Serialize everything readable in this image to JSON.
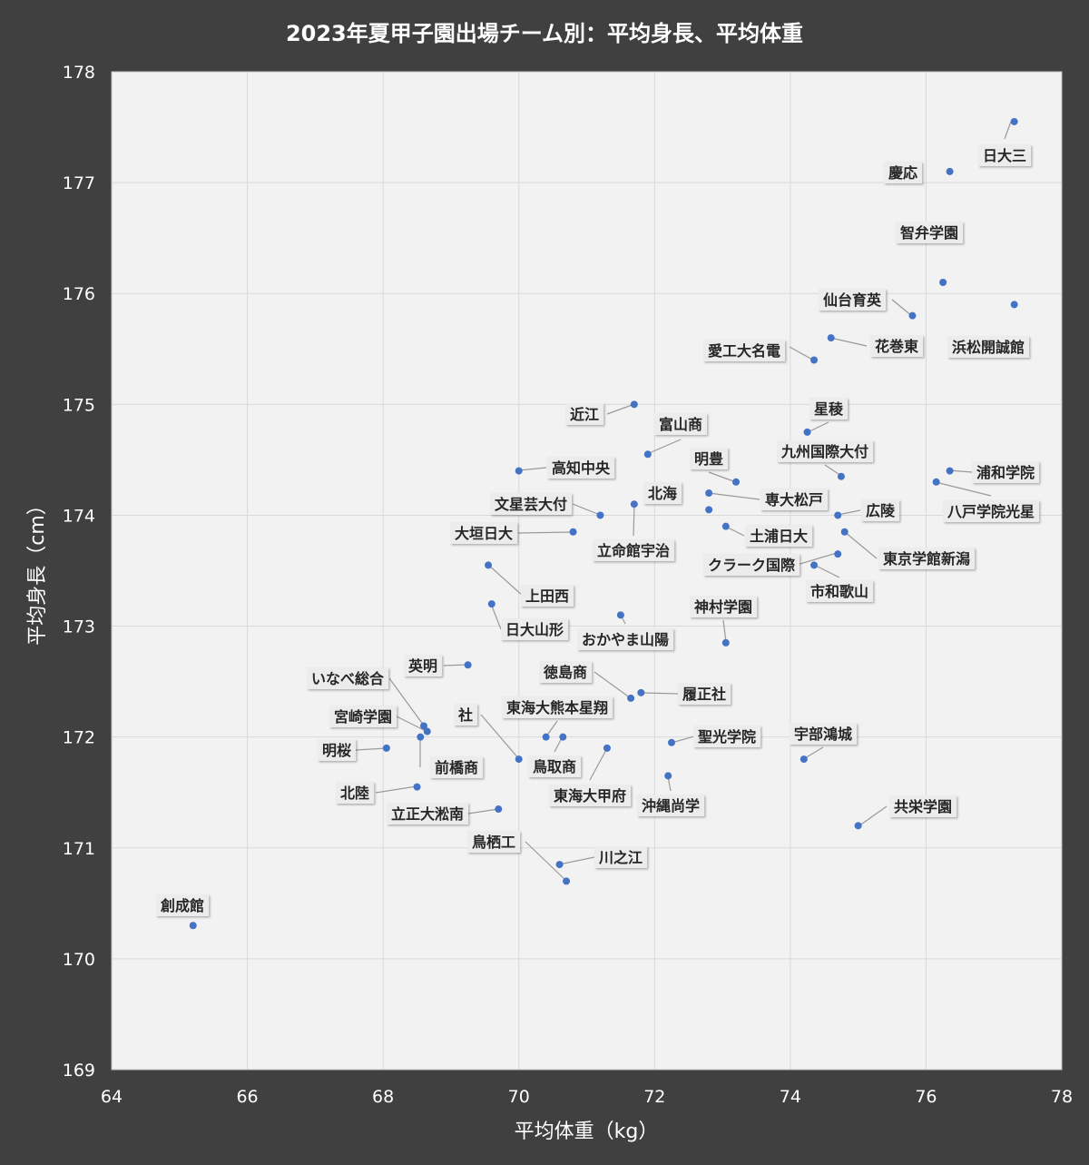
{
  "chart_data": {
    "type": "scatter",
    "title": "2023年夏甲子園出場チーム別：平均身長、平均体重",
    "xlabel": "平均体重（kg）",
    "ylabel": "平均身長（cm）",
    "xlim": [
      64,
      78
    ],
    "ylim": [
      169,
      178
    ],
    "xticks": [
      "64",
      "66",
      "68",
      "70",
      "72",
      "74",
      "76",
      "78"
    ],
    "yticks": [
      "169",
      "170",
      "171",
      "172",
      "173",
      "174",
      "175",
      "176",
      "177",
      "178"
    ],
    "grid": true,
    "legend": "none",
    "colors": {
      "point": "#4472c4",
      "plot_bg": "#f2f2f2",
      "frame_bg": "#404040"
    },
    "points": [
      {
        "name": "日大三",
        "x": 77.3,
        "y": 177.55
      },
      {
        "name": "慶応",
        "x": 76.35,
        "y": 177.1
      },
      {
        "name": "智弁学園",
        "x": 76.25,
        "y": 176.1
      },
      {
        "name": "浜松開誠館",
        "x": 77.3,
        "y": 175.9
      },
      {
        "name": "仙台育英",
        "x": 75.8,
        "y": 175.8
      },
      {
        "name": "花巻東",
        "x": 74.6,
        "y": 175.6
      },
      {
        "name": "愛工大名電",
        "x": 74.35,
        "y": 175.4
      },
      {
        "name": "近江",
        "x": 71.7,
        "y": 175.0
      },
      {
        "name": "星稜",
        "x": 74.25,
        "y": 174.75
      },
      {
        "name": "富山商",
        "x": 71.9,
        "y": 174.55
      },
      {
        "name": "九州国際大付",
        "x": 74.75,
        "y": 174.35
      },
      {
        "name": "浦和学院",
        "x": 76.35,
        "y": 174.4
      },
      {
        "name": "八戸学院光星",
        "x": 76.15,
        "y": 174.3
      },
      {
        "name": "高知中央",
        "x": 70.0,
        "y": 174.4
      },
      {
        "name": "明豊",
        "x": 73.2,
        "y": 174.3
      },
      {
        "name": "専大松戸",
        "x": 72.8,
        "y": 174.2
      },
      {
        "name": "北海",
        "x": 72.8,
        "y": 174.05
      },
      {
        "name": "広陵",
        "x": 74.7,
        "y": 174.0
      },
      {
        "name": "文星芸大付",
        "x": 71.2,
        "y": 174.0
      },
      {
        "name": "立命館宇治",
        "x": 71.7,
        "y": 174.1
      },
      {
        "name": "土浦日大",
        "x": 73.05,
        "y": 173.9
      },
      {
        "name": "大垣日大",
        "x": 70.8,
        "y": 173.85
      },
      {
        "name": "東京学館新潟",
        "x": 74.8,
        "y": 173.85
      },
      {
        "name": "クラーク国際",
        "x": 74.7,
        "y": 173.65
      },
      {
        "name": "市和歌山",
        "x": 74.35,
        "y": 173.55
      },
      {
        "name": "上田西",
        "x": 69.55,
        "y": 173.55
      },
      {
        "name": "日大山形",
        "x": 69.6,
        "y": 173.2
      },
      {
        "name": "おかやま山陽",
        "x": 71.5,
        "y": 173.1
      },
      {
        "name": "神村学園",
        "x": 73.05,
        "y": 172.85
      },
      {
        "name": "英明",
        "x": 69.25,
        "y": 172.65
      },
      {
        "name": "徳島商",
        "x": 71.65,
        "y": 172.35
      },
      {
        "name": "履正社",
        "x": 71.8,
        "y": 172.4
      },
      {
        "name": "いなべ総合",
        "x": 68.6,
        "y": 172.1
      },
      {
        "name": "宮崎学園",
        "x": 68.65,
        "y": 172.05
      },
      {
        "name": "前橋商",
        "x": 68.55,
        "y": 172.0
      },
      {
        "name": "東海大熊本星翔",
        "x": 70.4,
        "y": 172.0
      },
      {
        "name": "鳥取商",
        "x": 70.65,
        "y": 172.0
      },
      {
        "name": "聖光学院",
        "x": 72.25,
        "y": 171.95
      },
      {
        "name": "明桜",
        "x": 68.05,
        "y": 171.9
      },
      {
        "name": "東海大甲府",
        "x": 71.3,
        "y": 171.9
      },
      {
        "name": "社",
        "x": 70.0,
        "y": 171.8
      },
      {
        "name": "宇部鴻城",
        "x": 74.2,
        "y": 171.8
      },
      {
        "name": "沖縄尚学",
        "x": 72.2,
        "y": 171.65
      },
      {
        "name": "北陸",
        "x": 68.5,
        "y": 171.55
      },
      {
        "name": "立正大淞南",
        "x": 69.7,
        "y": 171.35
      },
      {
        "name": "共栄学園",
        "x": 75.0,
        "y": 171.2
      },
      {
        "name": "川之江",
        "x": 70.6,
        "y": 170.85
      },
      {
        "name": "鳥栖工",
        "x": 70.7,
        "y": 170.7
      },
      {
        "name": "創成館",
        "x": 65.2,
        "y": 170.3
      }
    ]
  }
}
